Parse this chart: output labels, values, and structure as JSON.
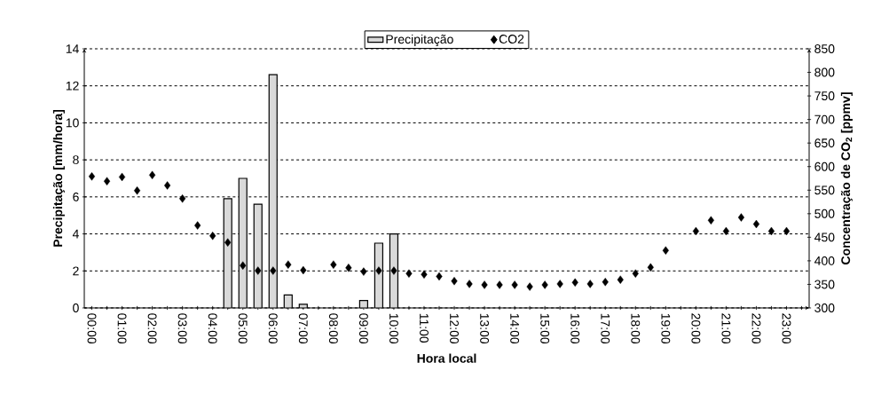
{
  "chart_data": {
    "type": "bar",
    "xlabel": "Hora local",
    "ylabel": "Precipitação [mm/hora]",
    "y2label": "Concentração de CO$_{2}$ [ppmv]",
    "categories": [
      "00:00",
      null,
      "01:00",
      null,
      "02:00",
      null,
      "03:00",
      null,
      "04:00",
      null,
      "05:00",
      null,
      "06:00",
      null,
      "07:00",
      null,
      "08:00",
      null,
      "09:00",
      null,
      "10:00",
      null,
      "11:00",
      null,
      "12:00",
      null,
      "13:00",
      null,
      "14:00",
      null,
      "15:00",
      null,
      "16:00",
      null,
      "17:00",
      null,
      "18:00",
      null,
      "19:00",
      null,
      "20:00",
      null,
      "21:00",
      null,
      "22:00",
      null,
      "23:00",
      null
    ],
    "series": [
      {
        "name": "Precipitação",
        "color": "#d9d9d9",
        "values": [
          null,
          null,
          null,
          null,
          null,
          null,
          null,
          null,
          null,
          5.9,
          7.0,
          5.6,
          12.6,
          0.7,
          0.2,
          null,
          null,
          null,
          0.4,
          3.5,
          4.0,
          null,
          null,
          null,
          null,
          null,
          null,
          null,
          null,
          null,
          null,
          null,
          null,
          null,
          null,
          null,
          null,
          null,
          null,
          null,
          null,
          null,
          null,
          null,
          null,
          null,
          null,
          null
        ]
      },
      {
        "name": "CO2",
        "type": "scatter",
        "axis": "y2",
        "color": "#000000",
        "values": [
          579,
          569,
          578,
          549,
          582,
          560,
          532,
          475,
          453,
          439,
          390,
          379,
          379,
          392,
          380,
          null,
          392,
          385,
          377,
          379,
          379,
          373,
          371,
          367,
          357,
          351,
          349,
          349,
          349,
          345,
          349,
          351,
          354,
          351,
          355,
          360,
          373,
          386,
          422,
          null,
          463,
          486,
          463,
          492,
          478,
          463,
          463,
          null
        ]
      }
    ],
    "ylim": [
      0,
      14
    ],
    "yticks": [
      0,
      2,
      4,
      6,
      8,
      10,
      12,
      14
    ],
    "y2lim": [
      300,
      850
    ],
    "y2ticks": [
      300,
      350,
      400,
      450,
      500,
      550,
      600,
      650,
      700,
      750,
      800,
      850
    ],
    "grid": "y",
    "legend": "top",
    "marker": "diamond"
  }
}
